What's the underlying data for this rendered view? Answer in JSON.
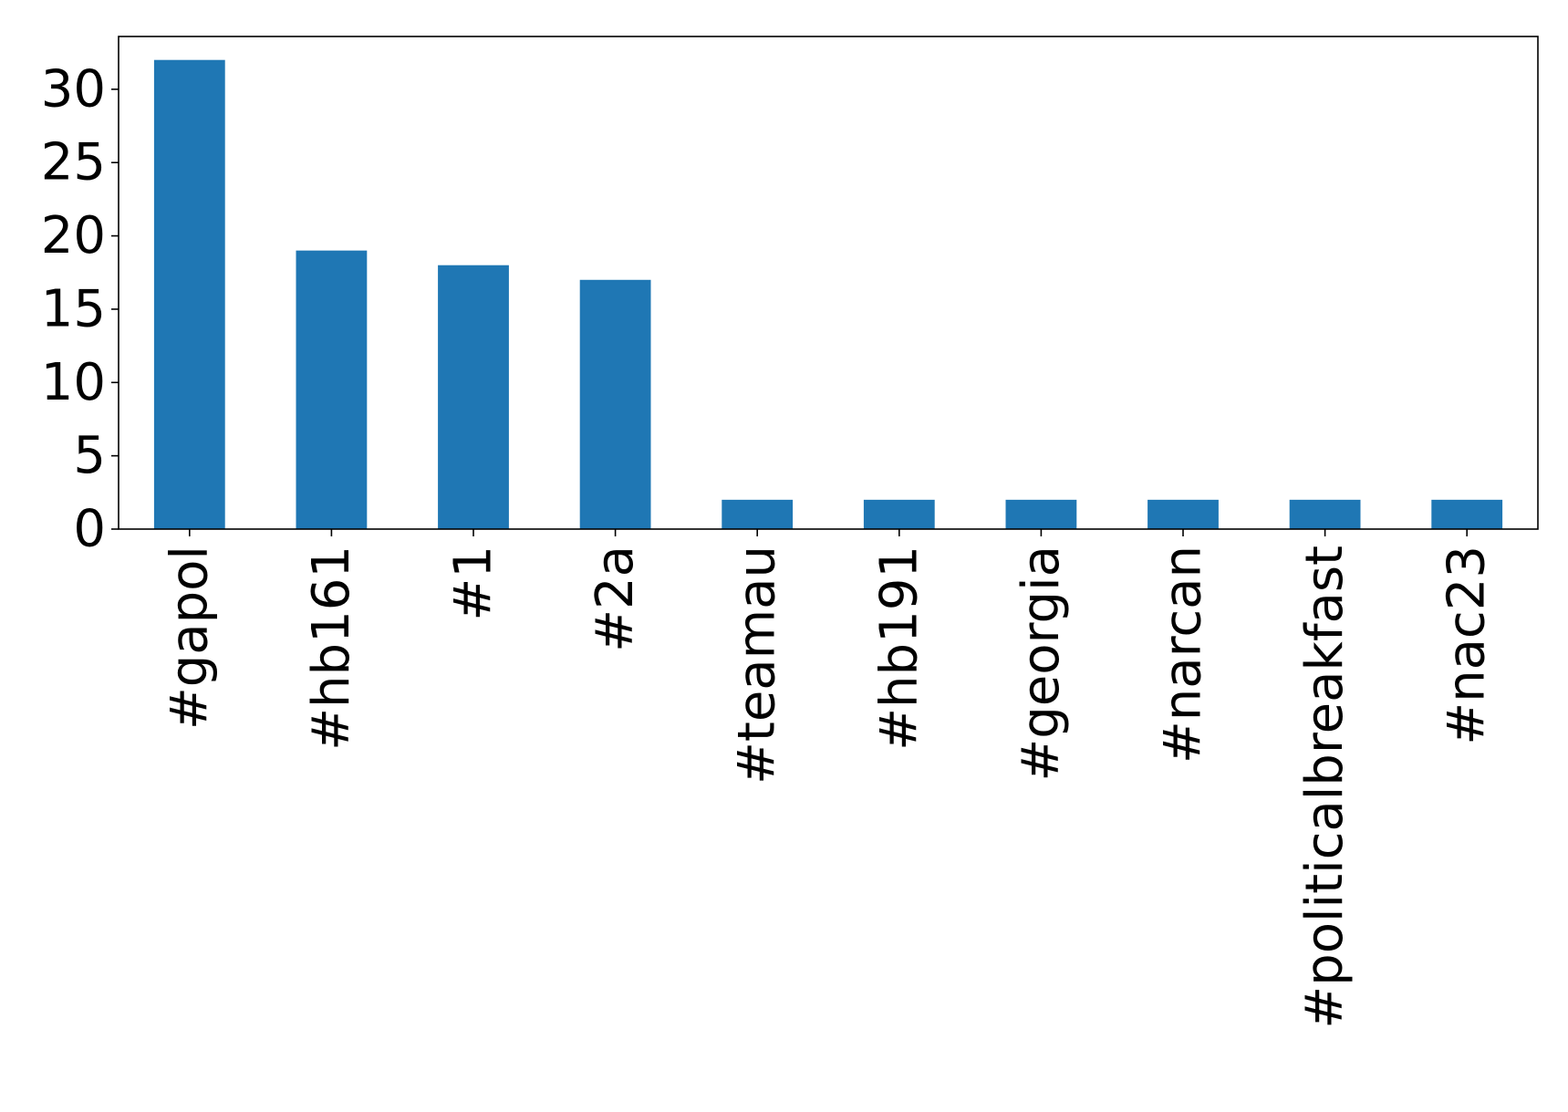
{
  "chart_data": {
    "type": "bar",
    "categories": [
      "#gapol",
      "#hb161",
      "#1",
      "#2a",
      "#teamau",
      "#hb191",
      "#georgia",
      "#narcan",
      "#politicalbreakfast",
      "#nac23"
    ],
    "values": [
      32,
      19,
      18,
      17,
      2,
      2,
      2,
      2,
      2,
      2
    ],
    "title": "",
    "xlabel": "",
    "ylabel": "",
    "ylim": [
      0,
      33.6
    ],
    "yticks": [
      "0",
      "5",
      "10",
      "15",
      "20",
      "25",
      "30"
    ],
    "bar_color": "#1f77b4",
    "grid": false,
    "legend": "none",
    "x_tick_rotation": "vertical"
  }
}
